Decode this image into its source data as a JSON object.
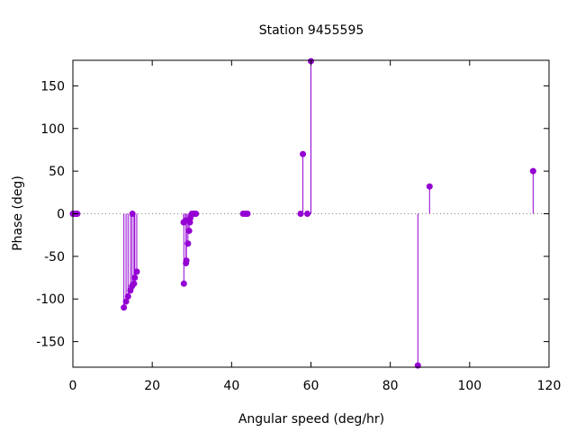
{
  "chart_data": {
    "type": "scatter",
    "title": "Station 9455595",
    "xlabel": "Angular speed (deg/hr)",
    "ylabel": "Phase (deg)",
    "xlim": [
      0,
      120
    ],
    "ylim": [
      -180,
      180
    ],
    "xticks": [
      0,
      20,
      40,
      60,
      80,
      100,
      120
    ],
    "yticks": [
      -150,
      -100,
      -50,
      0,
      50,
      100,
      150
    ],
    "zero_line": "dotted",
    "grid": false,
    "marker_color": "#9400d3",
    "points": [
      {
        "x": 0.0,
        "y": 0
      },
      {
        "x": 0.04,
        "y": 0
      },
      {
        "x": 0.08,
        "y": 0
      },
      {
        "x": 0.5,
        "y": 0
      },
      {
        "x": 0.55,
        "y": 0
      },
      {
        "x": 1.0,
        "y": 0
      },
      {
        "x": 1.1,
        "y": 0
      },
      {
        "x": 12.85,
        "y": -110
      },
      {
        "x": 13.4,
        "y": -103
      },
      {
        "x": 13.9,
        "y": -97
      },
      {
        "x": 14.5,
        "y": -90
      },
      {
        "x": 14.9,
        "y": -85
      },
      {
        "x": 15.0,
        "y": 0
      },
      {
        "x": 15.4,
        "y": -82
      },
      {
        "x": 15.6,
        "y": -75
      },
      {
        "x": 16.1,
        "y": -68
      },
      {
        "x": 27.9,
        "y": -10
      },
      {
        "x": 27.97,
        "y": -82
      },
      {
        "x": 28.4,
        "y": -8
      },
      {
        "x": 28.5,
        "y": -58
      },
      {
        "x": 28.6,
        "y": -55
      },
      {
        "x": 29.0,
        "y": -35
      },
      {
        "x": 29.3,
        "y": -20
      },
      {
        "x": 29.5,
        "y": -10
      },
      {
        "x": 29.6,
        "y": -5
      },
      {
        "x": 30.0,
        "y": 0
      },
      {
        "x": 30.5,
        "y": 0
      },
      {
        "x": 31.0,
        "y": 0
      },
      {
        "x": 42.9,
        "y": 0
      },
      {
        "x": 43.5,
        "y": 0
      },
      {
        "x": 44.0,
        "y": 0
      },
      {
        "x": 57.4,
        "y": 0
      },
      {
        "x": 57.97,
        "y": 70
      },
      {
        "x": 59.1,
        "y": 0
      },
      {
        "x": 60.0,
        "y": 179
      },
      {
        "x": 86.95,
        "y": -178
      },
      {
        "x": 89.9,
        "y": 32
      },
      {
        "x": 116.0,
        "y": 50
      }
    ]
  }
}
